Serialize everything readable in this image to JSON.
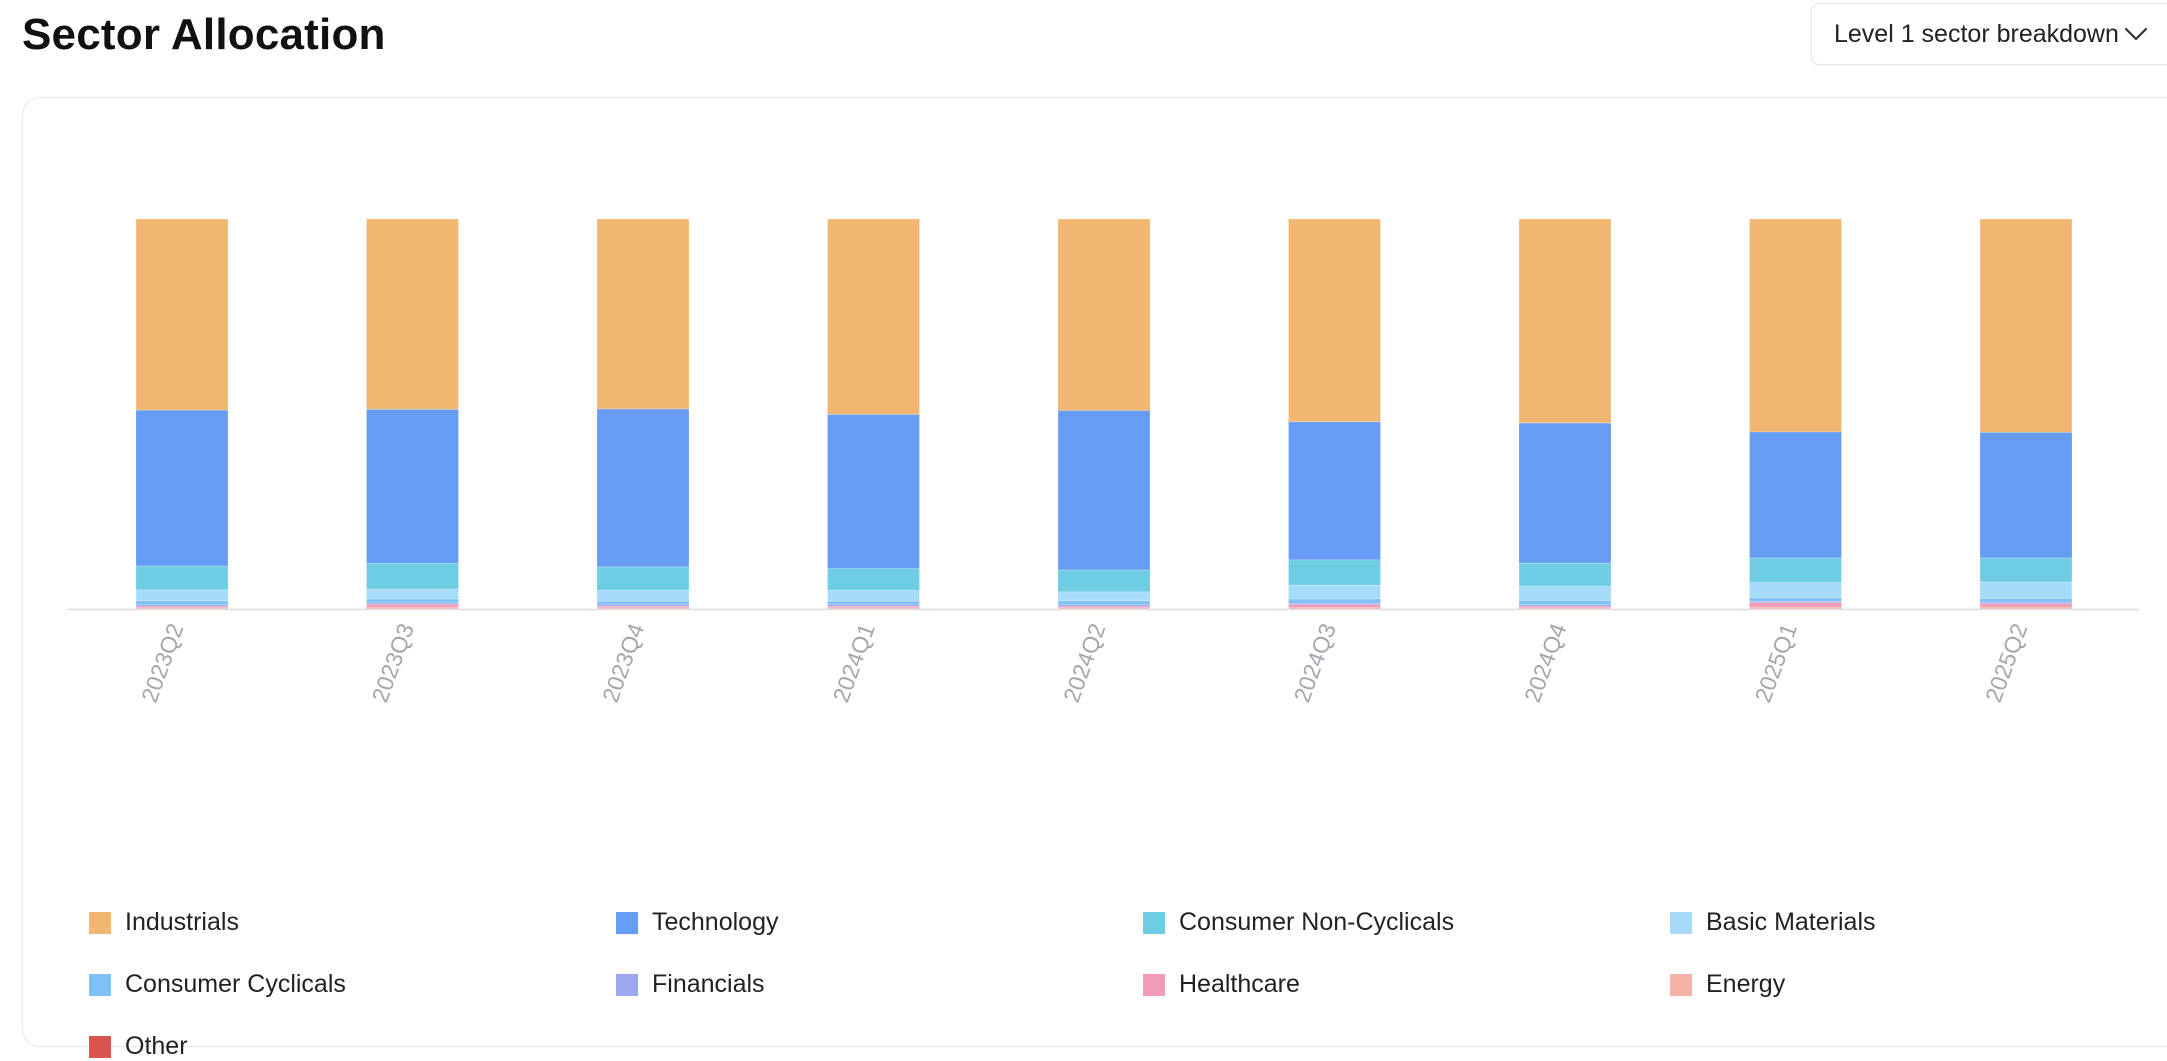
{
  "header": {
    "title": "Sector Allocation",
    "dropdown_label": "Level 1 sector breakdown"
  },
  "chart_data": {
    "type": "bar",
    "stacked": true,
    "normalized": true,
    "title": "Sector Allocation",
    "xlabel": "",
    "ylabel": "",
    "ylim": [
      0,
      100
    ],
    "grid": false,
    "legend_position": "bottom",
    "categories": [
      "2023Q2",
      "2023Q3",
      "2023Q4",
      "2024Q1",
      "2024Q2",
      "2024Q3",
      "2024Q4",
      "2025Q1",
      "2025Q2"
    ],
    "series": [
      {
        "name": "Other",
        "color": "#d9534f",
        "values": [
          0.1,
          0.1,
          0.1,
          0.1,
          0.1,
          0.1,
          0.1,
          0.1,
          0.1
        ]
      },
      {
        "name": "Energy",
        "color": "#f4b3a4",
        "values": [
          0.2,
          0.3,
          0.2,
          0.2,
          0.2,
          0.3,
          0.2,
          0.4,
          0.4
        ]
      },
      {
        "name": "Healthcare",
        "color": "#f29bb6",
        "values": [
          0.4,
          0.8,
          0.4,
          0.4,
          0.4,
          0.7,
          0.4,
          1.1,
          0.9
        ]
      },
      {
        "name": "Financials",
        "color": "#9ea8f2",
        "values": [
          0.4,
          0.4,
          0.4,
          0.4,
          0.4,
          0.4,
          0.4,
          0.4,
          0.4
        ]
      },
      {
        "name": "Consumer Cyclicals",
        "color": "#7fc0f5",
        "values": [
          1.0,
          1.0,
          0.9,
          0.9,
          1.0,
          1.1,
          1.1,
          0.9,
          0.9
        ]
      },
      {
        "name": "Basic Materials",
        "color": "#a6dcfa",
        "values": [
          2.8,
          2.5,
          2.8,
          2.8,
          2.3,
          3.5,
          3.6,
          3.9,
          4.2
        ]
      },
      {
        "name": "Consumer Non-Cyclicals",
        "color": "#6fcde3",
        "values": [
          6.1,
          6.6,
          6.0,
          5.6,
          5.6,
          6.5,
          6.0,
          6.3,
          6.2
        ]
      },
      {
        "name": "Technology",
        "color": "#679cf5",
        "values": [
          40.0,
          39.5,
          40.5,
          39.5,
          40.9,
          35.4,
          35.9,
          32.3,
          32.2
        ]
      },
      {
        "name": "Industrials",
        "color": "#f2b673",
        "values": [
          49.0,
          48.8,
          48.7,
          50.1,
          49.1,
          52.0,
          52.3,
          54.6,
          54.7
        ]
      }
    ]
  },
  "legend": {
    "items": [
      {
        "label": "Industrials",
        "color": "#f2b673"
      },
      {
        "label": "Technology",
        "color": "#679cf5"
      },
      {
        "label": "Consumer Non-Cyclicals",
        "color": "#6fcde3"
      },
      {
        "label": "Basic Materials",
        "color": "#a6dcfa"
      },
      {
        "label": "Consumer Cyclicals",
        "color": "#7fc0f5"
      },
      {
        "label": "Financials",
        "color": "#9ea8f2"
      },
      {
        "label": "Healthcare",
        "color": "#f29bb6"
      },
      {
        "label": "Energy",
        "color": "#f4b3a4"
      },
      {
        "label": "Other",
        "color": "#d9534f"
      }
    ]
  }
}
